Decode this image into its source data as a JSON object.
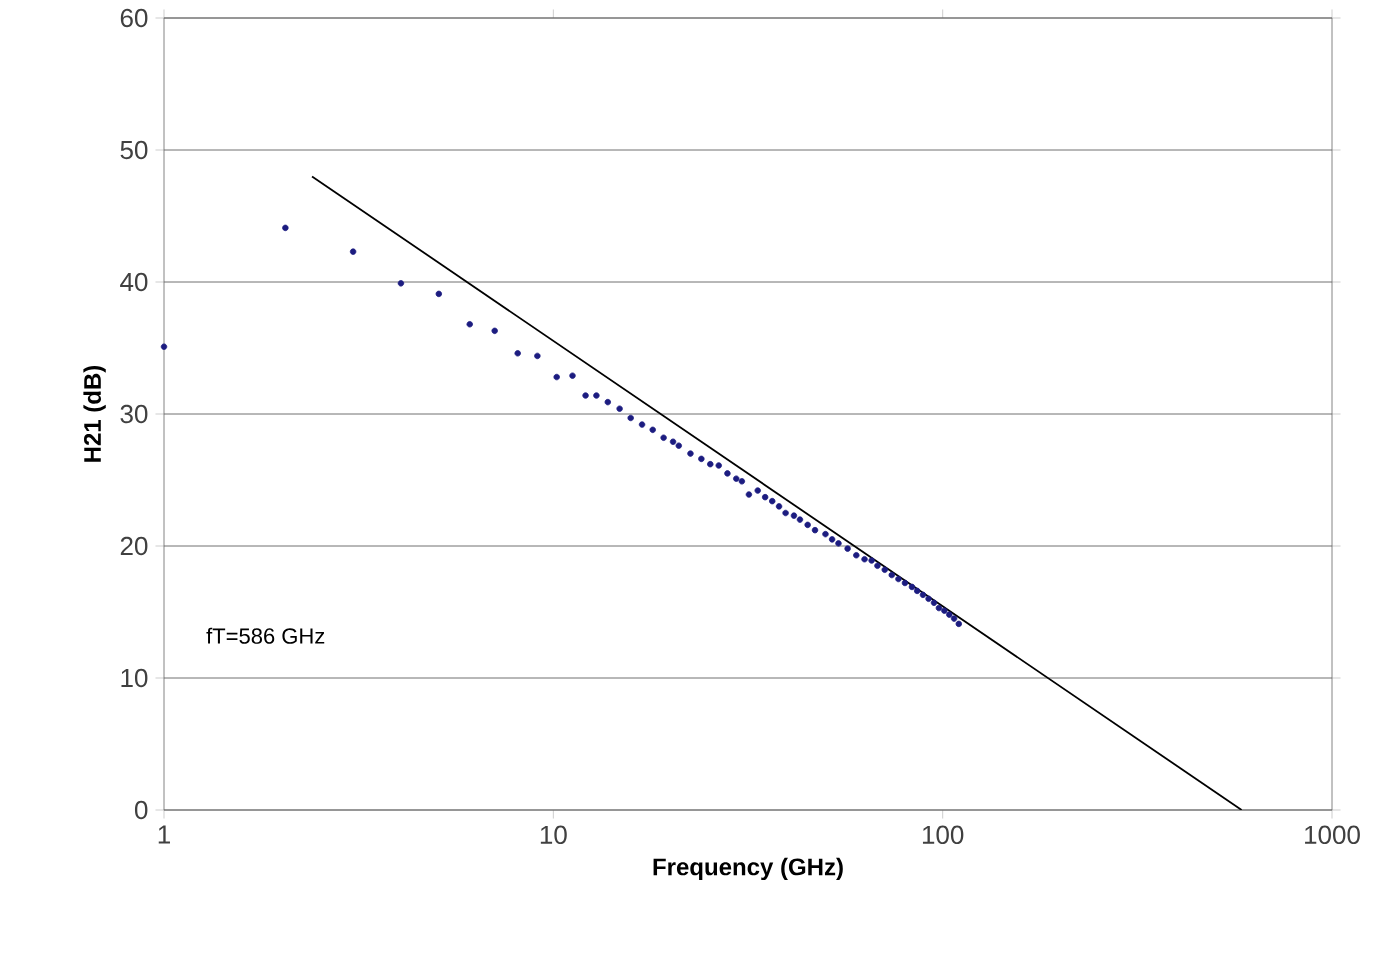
{
  "chart_data": {
    "type": "scatter",
    "xlabel": "Frequency (GHz)",
    "ylabel": "H21 (dB)",
    "log": "x",
    "grid": "y",
    "xlim": [
      1,
      1000
    ],
    "xticks": [
      1,
      10,
      100,
      1000
    ],
    "ylim": [
      0,
      60
    ],
    "yticks": [
      0,
      10,
      20,
      30,
      40,
      50,
      60
    ],
    "annotations": [
      "fT=586 GHz"
    ],
    "series": [
      {
        "marker": "circle",
        "color": "#1c1c80",
        "x": [
          1,
          2.05,
          3.06,
          4.06,
          5.08,
          6.1,
          7.07,
          8.1,
          9.1,
          10.2,
          11.2,
          12.1,
          12.9,
          13.8,
          14.8,
          15.8,
          16.9,
          18,
          19.2,
          20.3,
          21,
          22.5,
          24,
          25.3,
          26.6,
          28,
          29.5,
          30.5,
          31.8,
          33.5,
          35,
          36.5,
          38,
          39.5,
          41.5,
          43,
          45,
          47,
          50,
          52,
          54,
          57,
          60,
          63,
          65.7,
          68,
          71,
          74,
          77,
          80,
          83.4,
          86,
          89,
          92,
          95,
          97.8,
          101,
          104,
          107,
          110
        ],
        "values": [
          35.1,
          44.1,
          42.3,
          39.9,
          39.1,
          36.8,
          36.3,
          34.6,
          34.4,
          32.8,
          32.9,
          31.4,
          31.4,
          30.9,
          30.4,
          29.7,
          29.2,
          28.8,
          28.2,
          27.9,
          27.6,
          27.0,
          26.6,
          26.2,
          26.1,
          25.5,
          25.1,
          24.9,
          23.9,
          24.2,
          23.7,
          23.4,
          23.0,
          22.5,
          22.3,
          22.0,
          21.6,
          21.2,
          20.9,
          20.5,
          20.2,
          19.8,
          19.3,
          19.0,
          18.9,
          18.5,
          18.2,
          17.8,
          17.5,
          17.2,
          16.9,
          16.6,
          16.3,
          16.0,
          15.7,
          15.3,
          15.1,
          14.8,
          14.5,
          14.1
        ]
      },
      {
        "type": "line",
        "color": "#000000",
        "x": [
          2.4,
          586
        ],
        "values": [
          48,
          0
        ]
      }
    ]
  }
}
